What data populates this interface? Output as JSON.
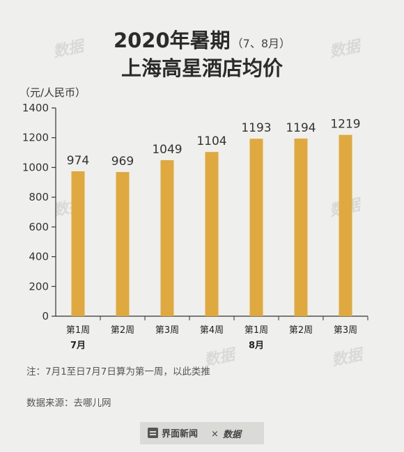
{
  "title": {
    "line1": "2020年暑期",
    "line1_suffix": "（7、8月）",
    "line2": "上海高星酒店均价"
  },
  "unit_label": "（元/人民币）",
  "note": "注：7月1至日7月7日算为第一周，以此类推",
  "source": "数据来源：去哪儿网",
  "footer": {
    "brand": "界面新闻",
    "separator": "×",
    "partner": "数据"
  },
  "watermark": "数据",
  "colors": {
    "bar": "#e0a93f",
    "background": "#efefed",
    "axis": "#333333"
  },
  "chart_data": {
    "type": "bar",
    "categories": [
      "第1周",
      "第2周",
      "第3周",
      "第4周",
      "第1周",
      "第2周",
      "第3周"
    ],
    "category_groups": [
      {
        "label": "7月",
        "indices": [
          0,
          1,
          2,
          3
        ]
      },
      {
        "label": "8月",
        "indices": [
          4,
          5,
          6
        ]
      }
    ],
    "values": [
      974,
      969,
      1049,
      1104,
      1193,
      1194,
      1219
    ],
    "ylim": [
      0,
      1400
    ],
    "yticks": [
      0,
      200,
      400,
      600,
      800,
      1000,
      1200,
      1400
    ],
    "grid": false,
    "legend": "none"
  }
}
